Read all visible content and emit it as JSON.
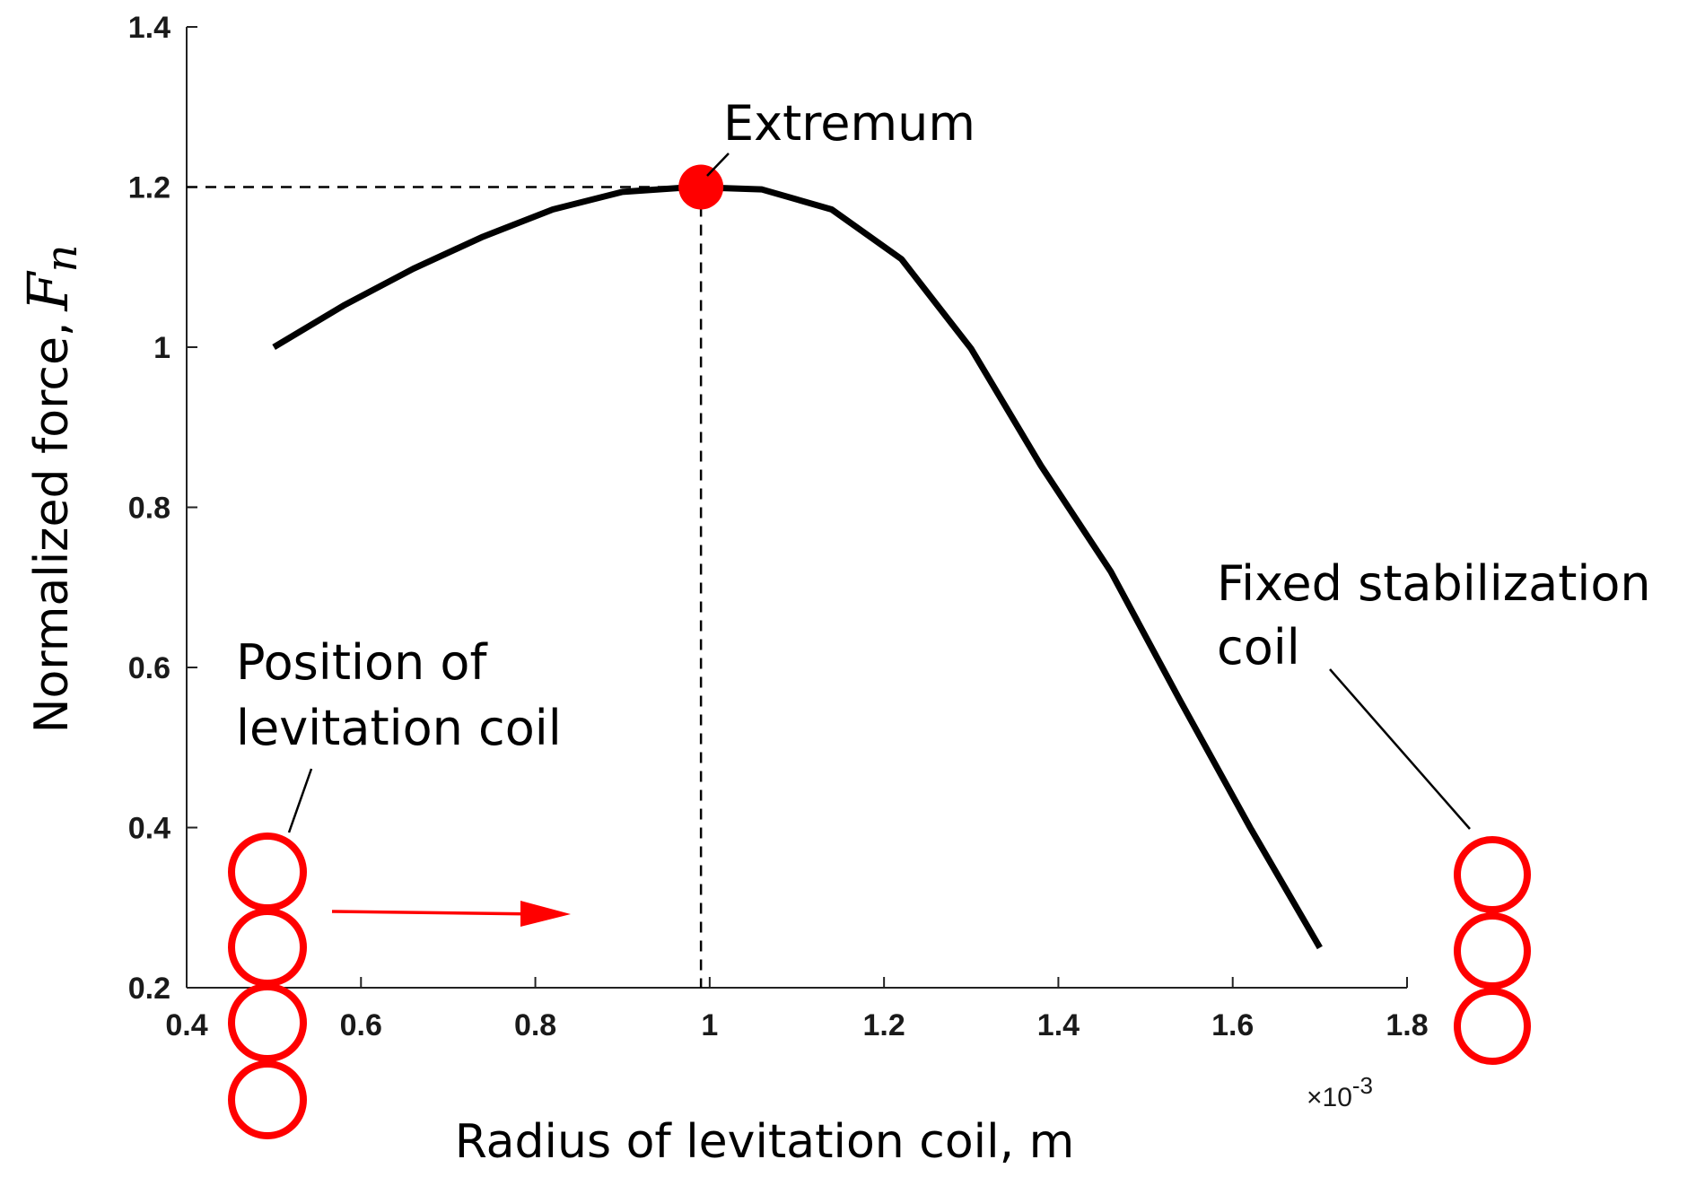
{
  "chart_data": {
    "type": "line",
    "x": [
      0.5,
      0.58,
      0.66,
      0.74,
      0.82,
      0.9,
      0.98,
      1.06,
      1.14,
      1.22,
      1.3,
      1.38,
      1.46,
      1.54,
      1.62,
      1.7
    ],
    "y": [
      1.0,
      1.052,
      1.098,
      1.138,
      1.172,
      1.194,
      1.2,
      1.197,
      1.172,
      1.11,
      0.998,
      0.852,
      0.72,
      0.558,
      0.4,
      0.25
    ],
    "series_name": "Normalized force",
    "xlim": [
      0.4,
      1.8
    ],
    "ylim": [
      0.2,
      1.4
    ],
    "xticks": [
      0.4,
      0.6,
      0.8,
      1.0,
      1.2,
      1.4,
      1.6,
      1.8
    ],
    "xtick_labels": [
      "0.4",
      "0.6",
      "0.8",
      "1",
      "1.2",
      "1.4",
      "1.6",
      "1.8"
    ],
    "yticks": [
      0.2,
      0.4,
      0.6,
      0.8,
      1.0,
      1.2,
      1.4
    ],
    "ytick_labels": [
      "0.2",
      "0.4",
      "0.6",
      "0.8",
      "1",
      "1.2",
      "1.4"
    ],
    "x_multiplier": "×10",
    "x_multiplier_exponent": "-3",
    "xlabel": "Radius of levitation coil, m",
    "ylabel": "Normalized force,",
    "ylabel_symbol": "F",
    "ylabel_subscript": "n",
    "extremum": {
      "x": 0.99,
      "y": 1.2,
      "label": "Extremum"
    },
    "annotations": {
      "levitation_coil": [
        "Position of",
        "levitation coil"
      ],
      "stabilization_coil": [
        "Fixed stabilization",
        "coil"
      ]
    },
    "colors": {
      "line": "#000000",
      "marker": "#ff0000",
      "coil": "#ff0000",
      "arrow": "#ff0000"
    }
  }
}
